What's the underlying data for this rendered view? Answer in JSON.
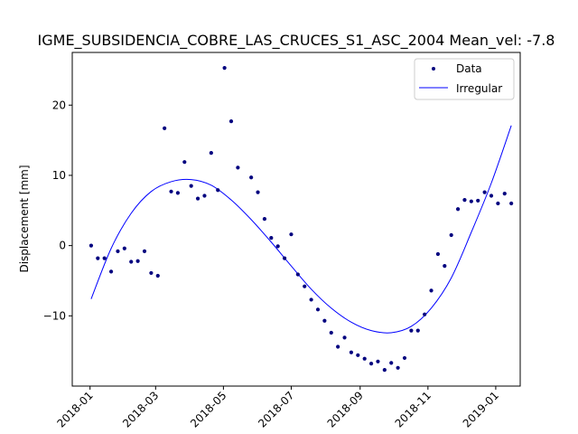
{
  "chart_data": {
    "type": "scatter",
    "title": "IGME_SUBSIDENCIA_COBRE_LAS_CRUCES_S1_ASC_2004     Mean_vel: -7.8",
    "xlabel": "",
    "ylabel": "Displacement [mm]",
    "x_range": [
      "2017-12-16",
      "2019-01-23"
    ],
    "ylim": [
      -20,
      27.5
    ],
    "x_ticks": [
      "2018-01",
      "2018-03",
      "2018-05",
      "2018-07",
      "2018-09",
      "2018-11",
      "2019-01"
    ],
    "x_tick_dates": [
      "2018-01-01",
      "2018-03-01",
      "2018-05-01",
      "2018-07-01",
      "2018-09-01",
      "2018-11-01",
      "2019-01-01"
    ],
    "y_ticks": [
      -10,
      0,
      10,
      20
    ],
    "grid": false,
    "legend_position": "top-right",
    "legend": [
      "Data",
      "Irregular"
    ],
    "colors": {
      "data": "#00007f",
      "irregular": "#0000ff"
    },
    "series": [
      {
        "name": "Data",
        "kind": "scatter",
        "points": [
          [
            "2018-01-02",
            0.0
          ],
          [
            "2018-01-08",
            -1.8
          ],
          [
            "2018-01-14",
            -1.8
          ],
          [
            "2018-01-20",
            -3.7
          ],
          [
            "2018-01-26",
            -0.8
          ],
          [
            "2018-02-01",
            -0.4
          ],
          [
            "2018-02-07",
            -2.3
          ],
          [
            "2018-02-13",
            -2.2
          ],
          [
            "2018-02-19",
            -0.8
          ],
          [
            "2018-02-25",
            -3.9
          ],
          [
            "2018-03-03",
            -4.3
          ],
          [
            "2018-03-09",
            16.7
          ],
          [
            "2018-03-15",
            7.7
          ],
          [
            "2018-03-21",
            7.5
          ],
          [
            "2018-03-27",
            11.9
          ],
          [
            "2018-04-02",
            8.5
          ],
          [
            "2018-04-08",
            6.7
          ],
          [
            "2018-04-14",
            7.1
          ],
          [
            "2018-04-20",
            13.2
          ],
          [
            "2018-04-26",
            7.9
          ],
          [
            "2018-05-02",
            25.3
          ],
          [
            "2018-05-08",
            17.7
          ],
          [
            "2018-05-14",
            11.1
          ],
          [
            "2018-05-26",
            9.7
          ],
          [
            "2018-06-01",
            7.6
          ],
          [
            "2018-06-07",
            3.8
          ],
          [
            "2018-06-13",
            1.1
          ],
          [
            "2018-06-19",
            -0.1
          ],
          [
            "2018-06-25",
            -1.8
          ],
          [
            "2018-07-01",
            1.6
          ],
          [
            "2018-07-07",
            -4.1
          ],
          [
            "2018-07-13",
            -5.8
          ],
          [
            "2018-07-19",
            -7.7
          ],
          [
            "2018-07-25",
            -9.1
          ],
          [
            "2018-07-31",
            -10.7
          ],
          [
            "2018-08-06",
            -12.4
          ],
          [
            "2018-08-12",
            -14.4
          ],
          [
            "2018-08-18",
            -13.1
          ],
          [
            "2018-08-24",
            -15.2
          ],
          [
            "2018-08-30",
            -15.6
          ],
          [
            "2018-09-05",
            -16.1
          ],
          [
            "2018-09-11",
            -16.8
          ],
          [
            "2018-09-17",
            -16.5
          ],
          [
            "2018-09-23",
            -17.7
          ],
          [
            "2018-09-29",
            -16.7
          ],
          [
            "2018-10-05",
            -17.4
          ],
          [
            "2018-10-11",
            -16.0
          ],
          [
            "2018-10-17",
            -12.1
          ],
          [
            "2018-10-23",
            -12.1
          ],
          [
            "2018-10-29",
            -9.8
          ],
          [
            "2018-11-04",
            -6.4
          ],
          [
            "2018-11-10",
            -1.2
          ],
          [
            "2018-11-16",
            -2.9
          ],
          [
            "2018-11-22",
            1.5
          ],
          [
            "2018-11-28",
            5.2
          ],
          [
            "2018-12-04",
            6.5
          ],
          [
            "2018-12-10",
            6.3
          ],
          [
            "2018-12-16",
            6.4
          ],
          [
            "2018-12-22",
            7.6
          ],
          [
            "2018-12-28",
            7.1
          ],
          [
            "2019-01-03",
            6.0
          ],
          [
            "2019-01-09",
            7.4
          ],
          [
            "2019-01-15",
            6.0
          ]
        ]
      },
      {
        "name": "Irregular",
        "kind": "line",
        "points": [
          [
            "2018-01-02",
            -7.6
          ],
          [
            "2018-01-20",
            -0.4
          ],
          [
            "2018-02-07",
            4.6
          ],
          [
            "2018-02-25",
            7.7
          ],
          [
            "2018-03-15",
            9.1
          ],
          [
            "2018-04-02",
            9.4
          ],
          [
            "2018-04-20",
            8.6
          ],
          [
            "2018-05-08",
            6.5
          ],
          [
            "2018-05-26",
            3.7
          ],
          [
            "2018-06-13",
            0.5
          ],
          [
            "2018-07-01",
            -2.9
          ],
          [
            "2018-07-19",
            -6.2
          ],
          [
            "2018-08-06",
            -8.9
          ],
          [
            "2018-08-24",
            -10.9
          ],
          [
            "2018-09-11",
            -12.1
          ],
          [
            "2018-09-29",
            -12.4
          ],
          [
            "2018-10-17",
            -11.5
          ],
          [
            "2018-11-04",
            -8.9
          ],
          [
            "2018-11-22",
            -4.6
          ],
          [
            "2018-12-10",
            1.9
          ],
          [
            "2018-12-28",
            8.9
          ],
          [
            "2019-01-15",
            17.1
          ]
        ]
      }
    ]
  }
}
